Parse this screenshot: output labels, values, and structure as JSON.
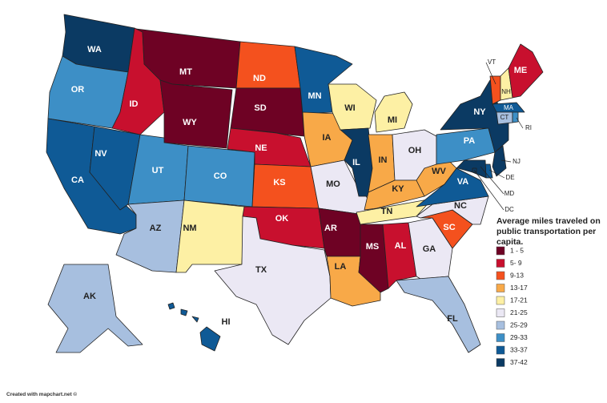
{
  "legend": {
    "title": "Average miles traveled on public transportation per capita.",
    "items": [
      {
        "label": "1 - 5",
        "color": "#6e0224"
      },
      {
        "label": "5- 9",
        "color": "#c8102e"
      },
      {
        "label": "9-13",
        "color": "#f4511e"
      },
      {
        "label": "13-17",
        "color": "#f8a948"
      },
      {
        "label": "17-21",
        "color": "#fdf0a4"
      },
      {
        "label": "21-25",
        "color": "#ebe8f4"
      },
      {
        "label": "25-29",
        "color": "#a7bfdf"
      },
      {
        "label": "29-33",
        "color": "#3d8fc6"
      },
      {
        "label": "33-37",
        "color": "#0f5a96"
      },
      {
        "label": "37-42",
        "color": "#0b3a63"
      }
    ]
  },
  "states": [
    {
      "label": "WA",
      "color": "#0b3a63"
    },
    {
      "label": "OR",
      "color": "#3d8fc6"
    },
    {
      "label": "CA",
      "color": "#0f5a96"
    },
    {
      "label": "NV",
      "color": "#0f5a96"
    },
    {
      "label": "ID",
      "color": "#c8102e"
    },
    {
      "label": "MT",
      "color": "#6e0224"
    },
    {
      "label": "WY",
      "color": "#6e0224"
    },
    {
      "label": "UT",
      "color": "#3d8fc6"
    },
    {
      "label": "CO",
      "color": "#3d8fc6"
    },
    {
      "label": "AZ",
      "color": "#a7bfdf"
    },
    {
      "label": "NM",
      "color": "#fdf0a4"
    },
    {
      "label": "ND",
      "color": "#f4511e"
    },
    {
      "label": "SD",
      "color": "#6e0224"
    },
    {
      "label": "NE",
      "color": "#c8102e"
    },
    {
      "label": "KS",
      "color": "#f4511e"
    },
    {
      "label": "OK",
      "color": "#c8102e"
    },
    {
      "label": "TX",
      "color": "#ebe8f4"
    },
    {
      "label": "MN",
      "color": "#0f5a96"
    },
    {
      "label": "IA",
      "color": "#f8a948"
    },
    {
      "label": "MO",
      "color": "#ebe8f4"
    },
    {
      "label": "AR",
      "color": "#6e0224"
    },
    {
      "label": "LA",
      "color": "#f8a948"
    },
    {
      "label": "WI",
      "color": "#fdf0a4"
    },
    {
      "label": "IL",
      "color": "#0b3a63"
    },
    {
      "label": "MI",
      "color": "#fdf0a4"
    },
    {
      "label": "IN",
      "color": "#f8a948"
    },
    {
      "label": "OH",
      "color": "#ebe8f4"
    },
    {
      "label": "KY",
      "color": "#f8a948"
    },
    {
      "label": "TN",
      "color": "#fdf0a4"
    },
    {
      "label": "MS",
      "color": "#6e0224"
    },
    {
      "label": "AL",
      "color": "#c8102e"
    },
    {
      "label": "GA",
      "color": "#ebe8f4"
    },
    {
      "label": "FL",
      "color": "#a7bfdf"
    },
    {
      "label": "SC",
      "color": "#f4511e"
    },
    {
      "label": "NC",
      "color": "#ebe8f4"
    },
    {
      "label": "VA",
      "color": "#0f5a96"
    },
    {
      "label": "WV",
      "color": "#f8a948"
    },
    {
      "label": "PA",
      "color": "#3d8fc6"
    },
    {
      "label": "NY",
      "color": "#0b3a63"
    },
    {
      "label": "VT",
      "color": "#f4511e"
    },
    {
      "label": "NH",
      "color": "#fdf0a4"
    },
    {
      "label": "ME",
      "color": "#c8102e"
    },
    {
      "label": "MA",
      "color": "#0f5a96"
    },
    {
      "label": "CT",
      "color": "#a7bfdf"
    },
    {
      "label": "RI",
      "color": "#3d8fc6"
    },
    {
      "label": "NJ",
      "color": "#0b3a63"
    },
    {
      "label": "DE",
      "color": "#0f5a96"
    },
    {
      "label": "MD",
      "color": "#0b3a63"
    },
    {
      "label": "DC",
      "color": "#0b3a63"
    },
    {
      "label": "AK",
      "color": "#a7bfdf"
    },
    {
      "label": "HI",
      "color": "#0f5a96"
    }
  ],
  "credit": "Created with mapchart.net ©"
}
